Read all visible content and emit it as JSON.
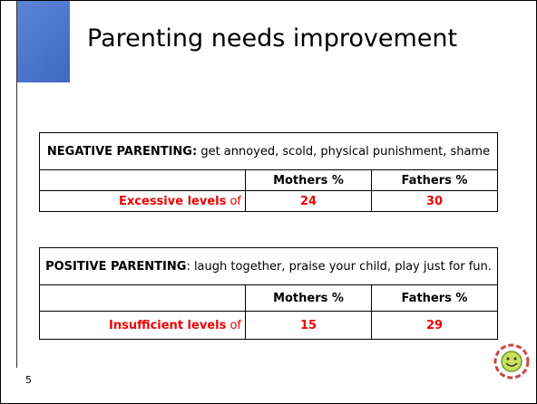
{
  "title": "Parenting needs improvement",
  "tables": [
    {
      "heading_bold": "NEGATIVE PARENTING:",
      "heading_rest": " get annoyed, scold, physical punishment, shame",
      "columns": [
        "Mothers %",
        "Fathers %"
      ],
      "row_label_bold": "Excessive levels",
      "row_label_rest": " of",
      "values": [
        24,
        30
      ]
    },
    {
      "heading_bold": "POSITIVE PARENTING",
      "heading_rest": ": laugh together, praise your child, play just for fun.",
      "columns": [
        "Mothers %",
        "Fathers %"
      ],
      "row_label_bold": "Insufficient levels",
      "row_label_rest": " of",
      "values": [
        15,
        29
      ]
    }
  ],
  "slide_number": "5"
}
